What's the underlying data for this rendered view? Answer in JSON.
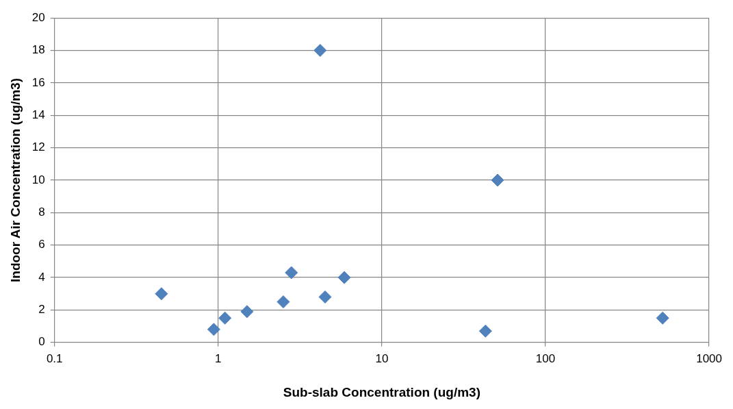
{
  "chart_data": {
    "type": "scatter",
    "xlabel": "Sub-slab Concentration (ug/m3)",
    "ylabel": "Indoor Air Concentration (ug/m3)",
    "x": [
      0.45,
      0.94,
      1.1,
      1.5,
      2.5,
      2.8,
      4.2,
      4.5,
      5.9,
      43,
      51,
      520
    ],
    "series": [
      {
        "color": "#4f81bd",
        "values": [
          3.0,
          0.8,
          1.5,
          1.9,
          2.5,
          4.3,
          18,
          2.8,
          4.0,
          0.7,
          10,
          1.5
        ]
      }
    ],
    "log": "x",
    "xlim": [
      0.1,
      1000
    ],
    "xticks": [
      0.1,
      1,
      10,
      100,
      1000
    ],
    "ylim": [
      0,
      20
    ],
    "yticks": [
      0,
      2,
      4,
      6,
      8,
      10,
      12,
      14,
      16,
      18,
      20
    ],
    "grid": true,
    "legend": false,
    "marker": "diamond"
  }
}
